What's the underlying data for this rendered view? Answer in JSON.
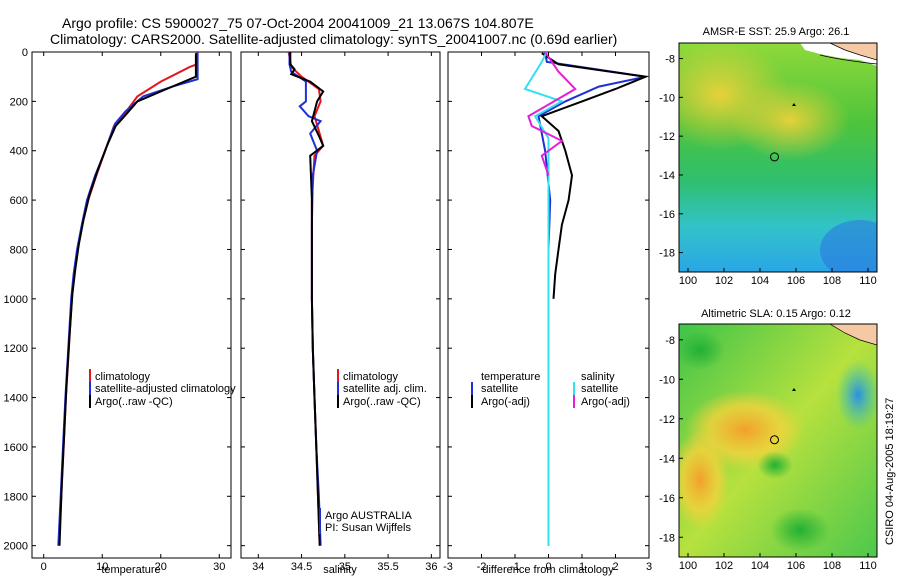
{
  "header": {
    "line1": "Argo profile: CS 5900027_75 07-Oct-2004 20041009_21 13.067S 104.807E",
    "line2": "Climatology: CARS2000. Satellite-adjusted climatology: synTS_20041007.nc (0.69d earlier)"
  },
  "footer_stamp": "CSIRO 04-Aug-2005 18:19:27",
  "colors": {
    "climatology": "#e8141b",
    "satellite": "#1f2fd6",
    "argo": "#000000",
    "sal_satellite": "#35e0ee",
    "sal_argo": "#e51fd8",
    "land": "#f4c9a3"
  },
  "chart_data": [
    {
      "id": "temperature",
      "type": "line",
      "xlabel": "temperature",
      "ylabel": "",
      "xlim": [
        -2,
        32
      ],
      "ylim": [
        2050,
        0
      ],
      "xticks": [
        0,
        10,
        20,
        30
      ],
      "yticks": [
        0,
        200,
        400,
        600,
        800,
        1000,
        1200,
        1400,
        1600,
        1800,
        2000
      ],
      "legend": [
        "climatology",
        "satellite-adjusted climatology",
        "Argo(..raw -QC)"
      ],
      "series": [
        {
          "name": "climatology",
          "color_key": "climatology",
          "points": [
            [
              26.2,
              0
            ],
            [
              26.2,
              50
            ],
            [
              25,
              60
            ],
            [
              20,
              120
            ],
            [
              16,
              180
            ],
            [
              13.5,
              260
            ],
            [
              12,
              300
            ],
            [
              10.5,
              400
            ],
            [
              9,
              500
            ],
            [
              7.6,
              600
            ],
            [
              6.6,
              700
            ],
            [
              5.8,
              800
            ],
            [
              5.2,
              900
            ],
            [
              4.8,
              1000
            ],
            [
              4.3,
              1200
            ],
            [
              3.8,
              1400
            ],
            [
              3.4,
              1600
            ],
            [
              3.0,
              1800
            ],
            [
              2.6,
              2000
            ]
          ]
        },
        {
          "name": "satellite-adjusted climatology",
          "color_key": "satellite",
          "points": [
            [
              26.3,
              0
            ],
            [
              26.3,
              110
            ],
            [
              22,
              140
            ],
            [
              17,
              180
            ],
            [
              14,
              240
            ],
            [
              12.2,
              290
            ],
            [
              10.5,
              400
            ],
            [
              8.8,
              500
            ],
            [
              7.4,
              600
            ],
            [
              6.5,
              700
            ],
            [
              5.7,
              800
            ],
            [
              5.1,
              900
            ],
            [
              4.7,
              1000
            ],
            [
              4.2,
              1200
            ],
            [
              3.7,
              1400
            ],
            [
              3.3,
              1600
            ],
            [
              2.9,
              1800
            ],
            [
              2.5,
              2000
            ]
          ]
        },
        {
          "name": "Argo(..raw -QC)",
          "color_key": "argo",
          "points": [
            [
              26.0,
              5
            ],
            [
              26.0,
              100
            ],
            [
              21,
              150
            ],
            [
              16,
              200
            ],
            [
              13.8,
              260
            ],
            [
              12.3,
              300
            ],
            [
              10.8,
              380
            ],
            [
              9.2,
              480
            ],
            [
              7.8,
              580
            ],
            [
              6.8,
              680
            ],
            [
              6.0,
              780
            ],
            [
              5.4,
              880
            ],
            [
              4.9,
              980
            ],
            [
              4.4,
              1150
            ],
            [
              3.9,
              1350
            ],
            [
              3.5,
              1550
            ],
            [
              3.1,
              1750
            ],
            [
              2.7,
              2000
            ]
          ]
        }
      ]
    },
    {
      "id": "salinity",
      "type": "line",
      "xlabel": "salinity",
      "xlim": [
        33.8,
        36.1
      ],
      "ylim": [
        2050,
        0
      ],
      "xticks": [
        34,
        34.5,
        35,
        35.5,
        36
      ],
      "legend": [
        "climatology",
        "satellite adj. clim.",
        "Argo(..raw -QC)"
      ],
      "annotations": [
        "Argo AUSTRALIA",
        "PI: Susan Wijffels"
      ],
      "series": [
        {
          "name": "climatology",
          "color_key": "climatology",
          "points": [
            [
              34.35,
              0
            ],
            [
              34.38,
              60
            ],
            [
              34.5,
              100
            ],
            [
              34.7,
              150
            ],
            [
              34.72,
              200
            ],
            [
              34.65,
              260
            ],
            [
              34.7,
              320
            ],
            [
              34.75,
              380
            ],
            [
              34.65,
              420
            ],
            [
              34.62,
              600
            ],
            [
              34.62,
              800
            ],
            [
              34.62,
              1000
            ],
            [
              34.63,
              1200
            ],
            [
              34.65,
              1400
            ],
            [
              34.67,
              1600
            ],
            [
              34.69,
              1800
            ],
            [
              34.71,
              2000
            ]
          ]
        },
        {
          "name": "satellite adj. clim.",
          "color_key": "satellite",
          "points": [
            [
              34.36,
              0
            ],
            [
              34.36,
              50
            ],
            [
              34.38,
              80
            ],
            [
              34.55,
              120
            ],
            [
              34.55,
              200
            ],
            [
              34.48,
              220
            ],
            [
              34.58,
              260
            ],
            [
              34.72,
              280
            ],
            [
              34.6,
              330
            ],
            [
              34.68,
              400
            ],
            [
              34.63,
              500
            ],
            [
              34.62,
              700
            ],
            [
              34.62,
              1000
            ],
            [
              34.63,
              1200
            ],
            [
              34.65,
              1400
            ],
            [
              34.67,
              1600
            ],
            [
              34.7,
              1800
            ],
            [
              34.72,
              2000
            ]
          ]
        },
        {
          "name": "Argo(..raw -QC)",
          "color_key": "argo",
          "points": [
            [
              34.37,
              0
            ],
            [
              34.37,
              50
            ],
            [
              34.42,
              70
            ],
            [
              34.38,
              90
            ],
            [
              34.6,
              120
            ],
            [
              34.75,
              160
            ],
            [
              34.68,
              200
            ],
            [
              34.62,
              280
            ],
            [
              34.7,
              340
            ],
            [
              34.75,
              380
            ],
            [
              34.6,
              420
            ],
            [
              34.62,
              600
            ],
            [
              34.62,
              800
            ],
            [
              34.62,
              1000
            ],
            [
              34.63,
              1200
            ],
            [
              34.65,
              1400
            ],
            [
              34.67,
              1600
            ],
            [
              34.69,
              1800
            ],
            [
              34.71,
              2000
            ]
          ]
        }
      ]
    },
    {
      "id": "difference",
      "type": "line",
      "xlabel": "difference from climatology",
      "xlim": [
        -3,
        3
      ],
      "ylim": [
        2050,
        0
      ],
      "xticks": [
        -3,
        -2,
        -1,
        0,
        1,
        2,
        3
      ],
      "legend_left": [
        "temperature",
        "satellite",
        "Argo(-adj)"
      ],
      "legend_right": [
        "salinity",
        "satellite",
        "Argo(-adj)"
      ],
      "series": [
        {
          "name": "temperature satellite",
          "color_key": "satellite",
          "points": [
            [
              -0.1,
              0
            ],
            [
              -0.05,
              40
            ],
            [
              2.9,
              100
            ],
            [
              1.5,
              140
            ],
            [
              0.5,
              200
            ],
            [
              -0.3,
              260
            ],
            [
              -0.1,
              400
            ],
            [
              0.05,
              600
            ],
            [
              0.0,
              800
            ],
            [
              0.0,
              1000
            ],
            [
              0.0,
              1200
            ],
            [
              0.0,
              1400
            ],
            [
              0.0,
              1600
            ],
            [
              0.0,
              1800
            ],
            [
              0.0,
              2000
            ]
          ]
        },
        {
          "name": "temperature Argo(-adj)",
          "color_key": "argo",
          "points": [
            [
              -0.2,
              5
            ],
            [
              0.3,
              50
            ],
            [
              2.9,
              100
            ],
            [
              2.0,
              150
            ],
            [
              1.0,
              200
            ],
            [
              -0.2,
              260
            ],
            [
              0.3,
              320
            ],
            [
              0.5,
              400
            ],
            [
              0.7,
              500
            ],
            [
              0.6,
              600
            ],
            [
              0.4,
              700
            ],
            [
              0.3,
              800
            ],
            [
              0.2,
              900
            ],
            [
              0.15,
              1000
            ]
          ]
        },
        {
          "name": "salinity satellite",
          "color_key": "sal_satellite",
          "points": [
            [
              -0.05,
              0
            ],
            [
              -0.2,
              40
            ],
            [
              -0.7,
              150
            ],
            [
              0.4,
              200
            ],
            [
              -0.4,
              260
            ],
            [
              0.0,
              350
            ],
            [
              0.0,
              500
            ],
            [
              0.0,
              800
            ],
            [
              0.0,
              1100
            ],
            [
              0.0,
              1400
            ],
            [
              0.0,
              1700
            ],
            [
              0.0,
              2000
            ]
          ]
        },
        {
          "name": "salinity Argo(-adj)",
          "color_key": "sal_argo",
          "points": [
            [
              -0.1,
              0
            ],
            [
              0.3,
              80
            ],
            [
              0.8,
              150
            ],
            [
              -0.6,
              260
            ],
            [
              -0.5,
              300
            ],
            [
              0.4,
              360
            ],
            [
              -0.2,
              420
            ],
            [
              0.0,
              500
            ]
          ]
        }
      ]
    },
    {
      "id": "sst_map",
      "type": "heatmap",
      "title": "AMSR-E SST: 25.9 Argo: 26.1",
      "xticks": [
        100,
        102,
        104,
        106,
        108,
        110
      ],
      "yticks": [
        -8,
        -10,
        -12,
        -14,
        -16,
        -18
      ],
      "xlim": [
        99.5,
        110.5
      ],
      "ylim": [
        -19,
        -7.2
      ],
      "argo_position": [
        104.807,
        -13.067
      ]
    },
    {
      "id": "sla_map",
      "type": "heatmap",
      "title": "Altimetric SLA: 0.15 Argo: 0.12",
      "xticks": [
        100,
        102,
        104,
        106,
        108,
        110
      ],
      "yticks": [
        -8,
        -10,
        -12,
        -14,
        -16,
        -18
      ],
      "xlim": [
        99.5,
        110.5
      ],
      "ylim": [
        -19,
        -7.2
      ],
      "argo_position": [
        104.807,
        -13.067
      ]
    }
  ]
}
